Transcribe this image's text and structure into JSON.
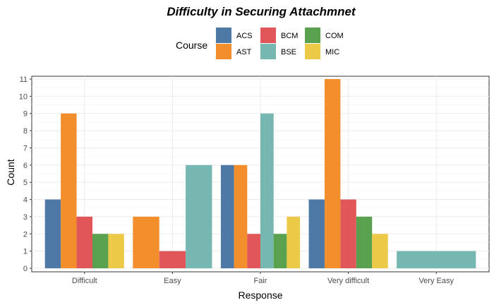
{
  "chart_data": {
    "type": "bar",
    "title": "Difficulty in Securing Attachmnet",
    "xlabel": "Response",
    "ylabel": "Count",
    "ylim": [
      0,
      11
    ],
    "yticks": [
      0,
      1,
      2,
      3,
      4,
      5,
      6,
      7,
      8,
      9,
      10,
      11
    ],
    "grid": true,
    "legend": {
      "title": "Course",
      "position": "top"
    },
    "categories": [
      "Difficult",
      "Easy",
      "Fair",
      "Very difficult",
      "Very Easy"
    ],
    "series": [
      {
        "name": "ACS",
        "color": "#4E79A7",
        "values": [
          4,
          null,
          6,
          4,
          null
        ]
      },
      {
        "name": "AST",
        "color": "#F28E2B",
        "values": [
          9,
          3,
          6,
          11,
          null
        ]
      },
      {
        "name": "BCM",
        "color": "#E15759",
        "values": [
          3,
          1,
          2,
          4,
          null
        ]
      },
      {
        "name": "BSE",
        "color": "#76B7B2",
        "values": [
          null,
          6,
          9,
          null,
          1
        ]
      },
      {
        "name": "COM",
        "color": "#59A14F",
        "values": [
          2,
          null,
          2,
          3,
          null
        ]
      },
      {
        "name": "MIC",
        "color": "#EDC948",
        "values": [
          2,
          null,
          3,
          2,
          null
        ]
      }
    ]
  }
}
